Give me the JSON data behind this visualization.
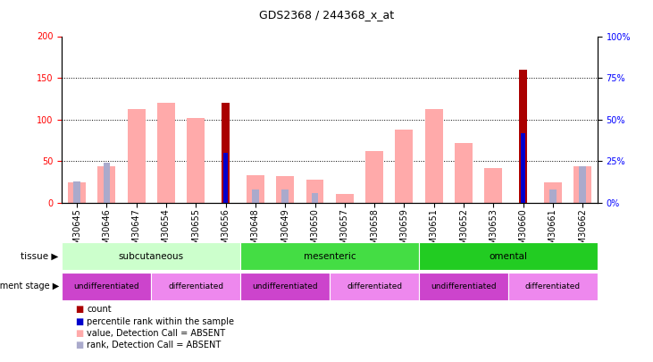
{
  "title": "GDS2368 / 244368_x_at",
  "samples": [
    "GSM30645",
    "GSM30646",
    "GSM30647",
    "GSM30654",
    "GSM30655",
    "GSM30656",
    "GSM30648",
    "GSM30649",
    "GSM30650",
    "GSM30657",
    "GSM30658",
    "GSM30659",
    "GSM30651",
    "GSM30652",
    "GSM30653",
    "GSM30660",
    "GSM30661",
    "GSM30662"
  ],
  "value_absent": [
    25,
    44,
    112,
    120,
    102,
    0,
    33,
    32,
    28,
    11,
    62,
    88,
    112,
    72,
    42,
    0,
    25,
    44
  ],
  "rank_absent": [
    13,
    24,
    0,
    0,
    0,
    0,
    8,
    8,
    6,
    0,
    0,
    0,
    0,
    0,
    0,
    0,
    8,
    22
  ],
  "count": [
    0,
    0,
    0,
    0,
    0,
    120,
    0,
    0,
    0,
    0,
    0,
    0,
    0,
    0,
    0,
    160,
    0,
    0
  ],
  "pct_rank": [
    0,
    0,
    0,
    0,
    0,
    30,
    0,
    0,
    0,
    0,
    0,
    0,
    0,
    0,
    0,
    42,
    0,
    0
  ],
  "ylim_left": [
    0,
    200
  ],
  "ylim_right": [
    0,
    100
  ],
  "yticks_left": [
    0,
    50,
    100,
    150,
    200
  ],
  "yticks_right": [
    0,
    25,
    50,
    75,
    100
  ],
  "ytick_labels_right": [
    "0%",
    "25%",
    "50%",
    "75%",
    "100%"
  ],
  "tissue_groups": [
    {
      "label": "subcutaneous",
      "start": 0,
      "end": 6,
      "color": "#ccffcc"
    },
    {
      "label": "mesenteric",
      "start": 6,
      "end": 12,
      "color": "#44dd44"
    },
    {
      "label": "omental",
      "start": 12,
      "end": 18,
      "color": "#22cc22"
    }
  ],
  "dev_groups": [
    {
      "label": "undifferentiated",
      "start": 0,
      "end": 3,
      "color": "#cc44cc"
    },
    {
      "label": "differentiated",
      "start": 3,
      "end": 6,
      "color": "#ee88ee"
    },
    {
      "label": "undifferentiated",
      "start": 6,
      "end": 9,
      "color": "#cc44cc"
    },
    {
      "label": "differentiated",
      "start": 9,
      "end": 12,
      "color": "#ee88ee"
    },
    {
      "label": "undifferentiated",
      "start": 12,
      "end": 15,
      "color": "#cc44cc"
    },
    {
      "label": "differentiated",
      "start": 15,
      "end": 18,
      "color": "#ee88ee"
    }
  ],
  "color_count": "#aa0000",
  "color_pct": "#0000cc",
  "color_value_absent": "#ffaaaa",
  "color_rank_absent": "#aaaacc",
  "bar_width": 0.6,
  "title_fontsize": 9,
  "tick_fontsize": 7,
  "label_fontsize": 7.5
}
